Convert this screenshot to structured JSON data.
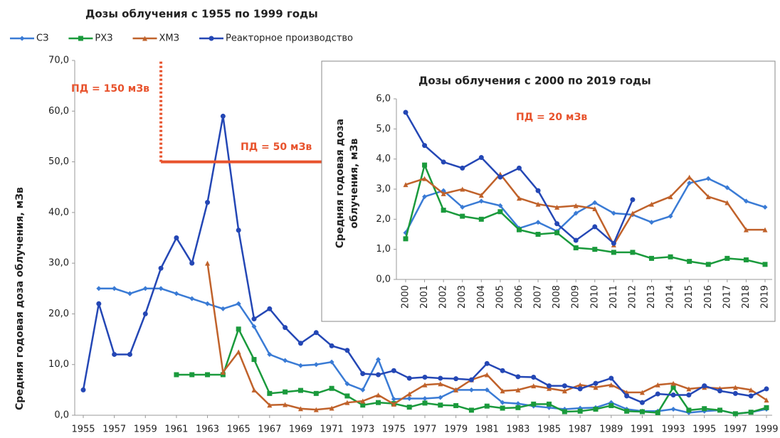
{
  "chart_data": [
    {
      "type": "line",
      "title": "Дозы облучения с 1955 по 1999 годы",
      "ylabel": "Средняя годовая доза облучения, мЗв",
      "x": [
        1955,
        1956,
        1957,
        1958,
        1959,
        1960,
        1961,
        1962,
        1963,
        1964,
        1965,
        1966,
        1967,
        1968,
        1969,
        1970,
        1971,
        1972,
        1973,
        1974,
        1975,
        1976,
        1977,
        1978,
        1979,
        1980,
        1981,
        1982,
        1983,
        1984,
        1985,
        1986,
        1987,
        1988,
        1989,
        1990,
        1991,
        1992,
        1993,
        1994,
        1995,
        1996,
        1997,
        1998,
        1999
      ],
      "xlim": [
        1955,
        1999
      ],
      "xticks": [
        1955,
        1957,
        1959,
        1961,
        1963,
        1965,
        1967,
        1969,
        1971,
        1973,
        1975,
        1977,
        1979,
        1981,
        1983,
        1985,
        1987,
        1989,
        1991,
        1993,
        1995,
        1997,
        1999
      ],
      "ylim": [
        0,
        70
      ],
      "yticks": [
        {
          "value": 0,
          "label": "0,0"
        },
        {
          "value": 10,
          "label": "10,0"
        },
        {
          "value": 20,
          "label": "20,0"
        },
        {
          "value": 30,
          "label": "30,0"
        },
        {
          "value": 40,
          "label": "40,0"
        },
        {
          "value": 50,
          "label": "50,0"
        },
        {
          "value": 60,
          "label": "60,0"
        },
        {
          "value": 70,
          "label": "70,0"
        }
      ],
      "series": [
        {
          "name": "СЗ",
          "color": "#3a7bd5",
          "marker": "diamond",
          "values": [
            null,
            25,
            25,
            24,
            25,
            25,
            24,
            23,
            22,
            21,
            22,
            17.5,
            12,
            10.8,
            9.8,
            10,
            10.5,
            6.2,
            5,
            11,
            3.2,
            3.3,
            3.3,
            3.5,
            5,
            5,
            5,
            2.5,
            2.3,
            1.8,
            1.5,
            1.2,
            1.4,
            1.5,
            2.5,
            1.2,
            0.8,
            0.8,
            1.2,
            0.5,
            0.8,
            1,
            0.3,
            0.6,
            1.2
          ]
        },
        {
          "name": "РХЗ",
          "color": "#1a9a3c",
          "marker": "square",
          "values": [
            null,
            null,
            null,
            null,
            null,
            null,
            8,
            8,
            8,
            8,
            17,
            11,
            4.3,
            4.6,
            4.9,
            4.3,
            5.3,
            3.8,
            2,
            2.5,
            2.3,
            1.6,
            2.4,
            2,
            1.9,
            1,
            1.8,
            1.4,
            1.5,
            2.2,
            2.2,
            0.7,
            0.8,
            1.2,
            1.9,
            0.8,
            0.7,
            0.5,
            5.5,
            1,
            1.3,
            1,
            0.3,
            0.6,
            1.5
          ]
        },
        {
          "name": "ХМЗ",
          "color": "#c0622b",
          "marker": "triangle",
          "values": [
            null,
            null,
            null,
            null,
            null,
            null,
            null,
            null,
            30,
            8.5,
            12.5,
            5,
            2,
            2.1,
            1.3,
            1.1,
            1.4,
            2.5,
            2.8,
            4,
            2.2,
            4.2,
            6,
            6.2,
            5,
            7,
            8,
            4.8,
            5,
            5.8,
            5.3,
            4.8,
            6,
            5.5,
            6,
            4.5,
            4.5,
            6,
            6.3,
            5.2,
            5.5,
            5.3,
            5.5,
            5,
            3
          ]
        },
        {
          "name": "Реакторное производство",
          "color": "#2447b5",
          "marker": "circle",
          "values": [
            5,
            22,
            12,
            12,
            20,
            29,
            35,
            30,
            42,
            59,
            36.5,
            19,
            21,
            17.3,
            14.2,
            16.3,
            13.7,
            12.8,
            8.2,
            8,
            8.8,
            7.3,
            7.5,
            7.3,
            7.2,
            7,
            10.2,
            8.8,
            7.6,
            7.5,
            5.8,
            5.8,
            5.2,
            6.3,
            7.3,
            3.8,
            2.5,
            4.2,
            4,
            4,
            5.8,
            4.8,
            4.3,
            3.8,
            5.2
          ]
        }
      ],
      "annotations": [
        "ПД = 150 мЗв",
        "ПД = 50 мЗв"
      ],
      "limit": {
        "x": 1960,
        "y": 50
      }
    },
    {
      "type": "line",
      "title": "Дозы облучения с  2000 по 2019 годы",
      "ylabel": [
        "Средняя годовая  доза",
        "облучения, мЗв"
      ],
      "categories": [
        "2000",
        "2001",
        "2002",
        "2003",
        "2004",
        "2005",
        "2006",
        "2007",
        "2008",
        "2009",
        "2010",
        "2011",
        "2012",
        "2013",
        "2014",
        "2015",
        "2016",
        "2017",
        "2018",
        "2019"
      ],
      "ylim": [
        0,
        6
      ],
      "yticks": [
        {
          "value": 0,
          "label": "0,0"
        },
        {
          "value": 1,
          "label": "1,0"
        },
        {
          "value": 2,
          "label": "2,0"
        },
        {
          "value": 3,
          "label": "3,0"
        },
        {
          "value": 4,
          "label": "4,0"
        },
        {
          "value": 5,
          "label": "5,0"
        },
        {
          "value": 6,
          "label": "6,0"
        }
      ],
      "series": [
        {
          "color": "#3a7bd5",
          "marker": "diamond",
          "values": [
            1.55,
            2.75,
            2.95,
            2.4,
            2.6,
            2.45,
            1.7,
            1.9,
            1.6,
            2.2,
            2.55,
            2.2,
            2.15,
            1.9,
            2.1,
            3.2,
            3.35,
            3.05,
            2.6,
            2.4
          ]
        },
        {
          "color": "#1a9a3c",
          "marker": "square",
          "values": [
            1.35,
            3.8,
            2.3,
            2.1,
            2,
            2.25,
            1.65,
            1.5,
            1.55,
            1.05,
            1,
            0.9,
            0.9,
            0.7,
            0.75,
            0.6,
            0.5,
            0.7,
            0.65,
            0.5
          ]
        },
        {
          "color": "#c0622b",
          "marker": "triangle",
          "values": [
            3.15,
            3.35,
            2.85,
            3,
            2.8,
            3.5,
            2.7,
            2.5,
            2.4,
            2.45,
            2.35,
            1.15,
            2.2,
            2.5,
            2.75,
            3.4,
            2.75,
            2.55,
            1.65,
            1.65
          ]
        },
        {
          "color": "#2447b5",
          "marker": "circle",
          "values": [
            5.55,
            4.45,
            3.9,
            3.7,
            4.05,
            3.4,
            3.7,
            2.95,
            1.85,
            1.3,
            1.75,
            1.2,
            2.65,
            null,
            null,
            null,
            null,
            null,
            null,
            null
          ]
        }
      ],
      "annotations": [
        "ПД = 20 мЗв"
      ]
    }
  ]
}
